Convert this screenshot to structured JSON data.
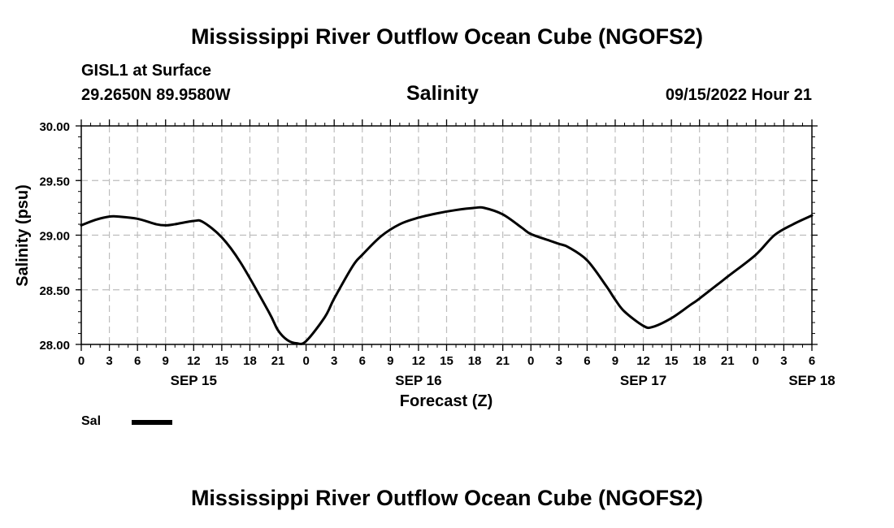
{
  "page": {
    "main_title": "Mississippi River Outflow Ocean Cube (NGOFS2)",
    "bottom_title": "Mississippi River Outflow Ocean Cube (NGOFS2)",
    "station": "GISL1 at Surface",
    "coords": "29.2650N  89.9580W",
    "variable_title": "Salinity",
    "datetime": "09/15/2022 Hour 21",
    "legend_label": "Sal"
  },
  "chart_data": {
    "type": "line",
    "title": "Salinity",
    "xlabel": "Forecast (Z)",
    "ylabel": "Salinity (psu)",
    "xlim": [
      0,
      78
    ],
    "ylim": [
      28.0,
      30.0
    ],
    "yticks": [
      "28.00",
      "28.50",
      "29.00",
      "29.50",
      "30.00"
    ],
    "ytick_values": [
      28.0,
      28.5,
      29.0,
      29.5,
      30.0
    ],
    "xtick_labels": [
      "0",
      "3",
      "6",
      "9",
      "12",
      "15",
      "18",
      "21",
      "0",
      "3",
      "6",
      "9",
      "12",
      "15",
      "18",
      "21",
      "0",
      "3",
      "6",
      "9",
      "12",
      "15",
      "18",
      "21",
      "0",
      "3",
      "6"
    ],
    "date_labels": [
      {
        "label": "SEP 15",
        "hour": 12
      },
      {
        "label": "SEP 16",
        "hour": 36
      },
      {
        "label": "SEP 17",
        "hour": 60
      },
      {
        "label": "SEP 18",
        "hour": 78
      }
    ],
    "grid": true,
    "series": [
      {
        "name": "Sal",
        "color": "#000000",
        "x": [
          0,
          1.5,
          3,
          4,
          6,
          8,
          9,
          10,
          12,
          13,
          15,
          17,
          20,
          21,
          22,
          23,
          24,
          26,
          27,
          29,
          30,
          32,
          34,
          36,
          38,
          40,
          42,
          43,
          45,
          47,
          48,
          50,
          51,
          52,
          54,
          56,
          57,
          58,
          60,
          61,
          63,
          65,
          66,
          69,
          72,
          74,
          76,
          78
        ],
        "values": [
          29.09,
          29.14,
          29.17,
          29.17,
          29.15,
          29.1,
          29.09,
          29.1,
          29.13,
          29.12,
          28.98,
          28.75,
          28.3,
          28.13,
          28.04,
          28.01,
          28.03,
          28.25,
          28.42,
          28.72,
          28.82,
          28.99,
          29.1,
          29.16,
          29.2,
          29.23,
          29.25,
          29.25,
          29.19,
          29.07,
          29.01,
          28.95,
          28.92,
          28.89,
          28.77,
          28.54,
          28.41,
          28.3,
          28.17,
          28.16,
          28.24,
          28.36,
          28.42,
          28.62,
          28.82,
          29.0,
          29.1,
          29.18
        ]
      }
    ]
  }
}
